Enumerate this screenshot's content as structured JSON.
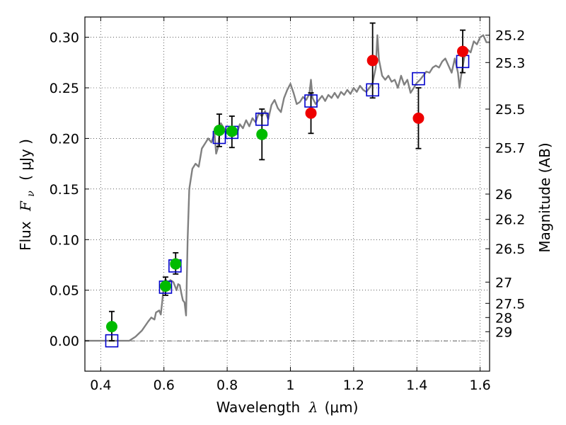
{
  "chart_data": {
    "type": "scatter",
    "title": "",
    "xlabel": {
      "pre": "Wavelength",
      "lambda": "λ",
      "unit": "(μm)"
    },
    "ylabel": {
      "pre": "Flux",
      "symbol": "F",
      "sub": "ν",
      "unit": "( μJy )"
    },
    "y2label": "Magnitude (AB)",
    "xlim": [
      0.35,
      1.63
    ],
    "ylim": [
      -0.03,
      0.32
    ],
    "grid": true,
    "legend": "none",
    "x_ticks": [
      {
        "v": 0.4,
        "t": "0.4"
      },
      {
        "v": 0.6,
        "t": "0.6"
      },
      {
        "v": 0.8,
        "t": "0.8"
      },
      {
        "v": 1.0,
        "t": "1"
      },
      {
        "v": 1.2,
        "t": "1.2"
      },
      {
        "v": 1.4,
        "t": "1.4"
      },
      {
        "v": 1.6,
        "t": "1.6"
      }
    ],
    "y_ticks": [
      {
        "v": 0.0,
        "t": "0.00"
      },
      {
        "v": 0.05,
        "t": "0.05"
      },
      {
        "v": 0.1,
        "t": "0.10"
      },
      {
        "v": 0.15,
        "t": "0.15"
      },
      {
        "v": 0.2,
        "t": "0.20"
      },
      {
        "v": 0.25,
        "t": "0.25"
      },
      {
        "v": 0.3,
        "t": "0.30"
      }
    ],
    "mag_ticks": [
      {
        "flux": 0.302,
        "t": "25.2"
      },
      {
        "flux": 0.275,
        "t": "25.3"
      },
      {
        "flux": 0.229,
        "t": "25.5"
      },
      {
        "flux": 0.191,
        "t": "25.7"
      },
      {
        "flux": 0.145,
        "t": "26"
      },
      {
        "flux": 0.12,
        "t": "26.2"
      },
      {
        "flux": 0.091,
        "t": "26.5"
      },
      {
        "flux": 0.058,
        "t": "27"
      },
      {
        "flux": 0.037,
        "t": "27.5"
      },
      {
        "flux": 0.023,
        "t": "28"
      },
      {
        "flux": 0.009,
        "t": "29"
      }
    ],
    "zero_line": 0.0,
    "series": [
      {
        "kind": "line",
        "color": "#808080",
        "points": [
          [
            0.35,
            0.0
          ],
          [
            0.49,
            0.0
          ],
          [
            0.51,
            0.004
          ],
          [
            0.53,
            0.01
          ],
          [
            0.55,
            0.019
          ],
          [
            0.56,
            0.023
          ],
          [
            0.57,
            0.021
          ],
          [
            0.575,
            0.028
          ],
          [
            0.585,
            0.03
          ],
          [
            0.59,
            0.026
          ],
          [
            0.595,
            0.04
          ],
          [
            0.6,
            0.057
          ],
          [
            0.605,
            0.061
          ],
          [
            0.61,
            0.058
          ],
          [
            0.615,
            0.055
          ],
          [
            0.62,
            0.06
          ],
          [
            0.63,
            0.058
          ],
          [
            0.64,
            0.05
          ],
          [
            0.645,
            0.056
          ],
          [
            0.65,
            0.055
          ],
          [
            0.655,
            0.047
          ],
          [
            0.66,
            0.04
          ],
          [
            0.665,
            0.038
          ],
          [
            0.67,
            0.025
          ],
          [
            0.675,
            0.1
          ],
          [
            0.68,
            0.15
          ],
          [
            0.69,
            0.17
          ],
          [
            0.7,
            0.175
          ],
          [
            0.71,
            0.172
          ],
          [
            0.72,
            0.19
          ],
          [
            0.73,
            0.195
          ],
          [
            0.74,
            0.2
          ],
          [
            0.75,
            0.196
          ],
          [
            0.76,
            0.205
          ],
          [
            0.765,
            0.185
          ],
          [
            0.77,
            0.19
          ],
          [
            0.78,
            0.215
          ],
          [
            0.79,
            0.21
          ],
          [
            0.8,
            0.205
          ],
          [
            0.81,
            0.208
          ],
          [
            0.82,
            0.21
          ],
          [
            0.83,
            0.204
          ],
          [
            0.84,
            0.214
          ],
          [
            0.85,
            0.21
          ],
          [
            0.86,
            0.218
          ],
          [
            0.87,
            0.212
          ],
          [
            0.88,
            0.22
          ],
          [
            0.89,
            0.216
          ],
          [
            0.9,
            0.225
          ],
          [
            0.91,
            0.222
          ],
          [
            0.92,
            0.227
          ],
          [
            0.93,
            0.219
          ],
          [
            0.94,
            0.233
          ],
          [
            0.95,
            0.238
          ],
          [
            0.96,
            0.23
          ],
          [
            0.97,
            0.226
          ],
          [
            0.98,
            0.24
          ],
          [
            0.99,
            0.248
          ],
          [
            1.0,
            0.254
          ],
          [
            1.01,
            0.245
          ],
          [
            1.02,
            0.234
          ],
          [
            1.03,
            0.236
          ],
          [
            1.04,
            0.241
          ],
          [
            1.05,
            0.238
          ],
          [
            1.06,
            0.244
          ],
          [
            1.065,
            0.258
          ],
          [
            1.07,
            0.24
          ],
          [
            1.08,
            0.234
          ],
          [
            1.09,
            0.238
          ],
          [
            1.1,
            0.242
          ],
          [
            1.11,
            0.237
          ],
          [
            1.12,
            0.243
          ],
          [
            1.13,
            0.24
          ],
          [
            1.14,
            0.245
          ],
          [
            1.15,
            0.24
          ],
          [
            1.16,
            0.246
          ],
          [
            1.17,
            0.243
          ],
          [
            1.18,
            0.248
          ],
          [
            1.19,
            0.244
          ],
          [
            1.2,
            0.25
          ],
          [
            1.21,
            0.246
          ],
          [
            1.22,
            0.252
          ],
          [
            1.23,
            0.248
          ],
          [
            1.24,
            0.246
          ],
          [
            1.25,
            0.25
          ],
          [
            1.26,
            0.255
          ],
          [
            1.27,
            0.27
          ],
          [
            1.275,
            0.302
          ],
          [
            1.28,
            0.278
          ],
          [
            1.29,
            0.262
          ],
          [
            1.3,
            0.258
          ],
          [
            1.31,
            0.262
          ],
          [
            1.32,
            0.256
          ],
          [
            1.33,
            0.258
          ],
          [
            1.34,
            0.25
          ],
          [
            1.35,
            0.262
          ],
          [
            1.36,
            0.253
          ],
          [
            1.37,
            0.258
          ],
          [
            1.38,
            0.245
          ],
          [
            1.39,
            0.25
          ],
          [
            1.4,
            0.255
          ],
          [
            1.41,
            0.258
          ],
          [
            1.42,
            0.262
          ],
          [
            1.43,
            0.266
          ],
          [
            1.44,
            0.265
          ],
          [
            1.45,
            0.27
          ],
          [
            1.46,
            0.272
          ],
          [
            1.47,
            0.27
          ],
          [
            1.48,
            0.276
          ],
          [
            1.49,
            0.279
          ],
          [
            1.5,
            0.272
          ],
          [
            1.51,
            0.265
          ],
          [
            1.52,
            0.279
          ],
          [
            1.53,
            0.265
          ],
          [
            1.535,
            0.25
          ],
          [
            1.54,
            0.262
          ],
          [
            1.55,
            0.28
          ],
          [
            1.56,
            0.288
          ],
          [
            1.57,
            0.285
          ],
          [
            1.58,
            0.296
          ],
          [
            1.59,
            0.293
          ],
          [
            1.6,
            0.3
          ],
          [
            1.61,
            0.302
          ],
          [
            1.62,
            0.295
          ],
          [
            1.63,
            0.295
          ]
        ]
      },
      {
        "kind": "square",
        "color": "#0000cc",
        "points": [
          [
            0.435,
            0.0
          ],
          [
            0.605,
            0.053
          ],
          [
            0.635,
            0.074
          ],
          [
            0.775,
            0.201
          ],
          [
            0.815,
            0.206
          ],
          [
            0.91,
            0.219
          ],
          [
            1.065,
            0.237
          ],
          [
            1.26,
            0.248
          ],
          [
            1.405,
            0.259
          ],
          [
            1.545,
            0.276
          ]
        ]
      },
      {
        "kind": "circle",
        "color": "#00bb00",
        "points": [
          {
            "x": 0.435,
            "y": 0.014,
            "lo": 0.0,
            "hi": 0.029
          },
          {
            "x": 0.605,
            "y": 0.054,
            "lo": 0.045,
            "hi": 0.063
          },
          {
            "x": 0.637,
            "y": 0.076,
            "lo": 0.066,
            "hi": 0.087
          },
          {
            "x": 0.775,
            "y": 0.208,
            "lo": 0.192,
            "hi": 0.224
          },
          {
            "x": 0.815,
            "y": 0.207,
            "lo": 0.191,
            "hi": 0.222
          },
          {
            "x": 0.91,
            "y": 0.204,
            "lo": 0.179,
            "hi": 0.229
          }
        ]
      },
      {
        "kind": "circle",
        "color": "#ee0000",
        "points": [
          {
            "x": 1.065,
            "y": 0.225,
            "lo": 0.205,
            "hi": 0.245
          },
          {
            "x": 1.26,
            "y": 0.277,
            "lo": 0.24,
            "hi": 0.314
          },
          {
            "x": 1.405,
            "y": 0.22,
            "lo": 0.19,
            "hi": 0.25
          },
          {
            "x": 1.545,
            "y": 0.286,
            "lo": 0.265,
            "hi": 0.307
          }
        ]
      }
    ]
  }
}
